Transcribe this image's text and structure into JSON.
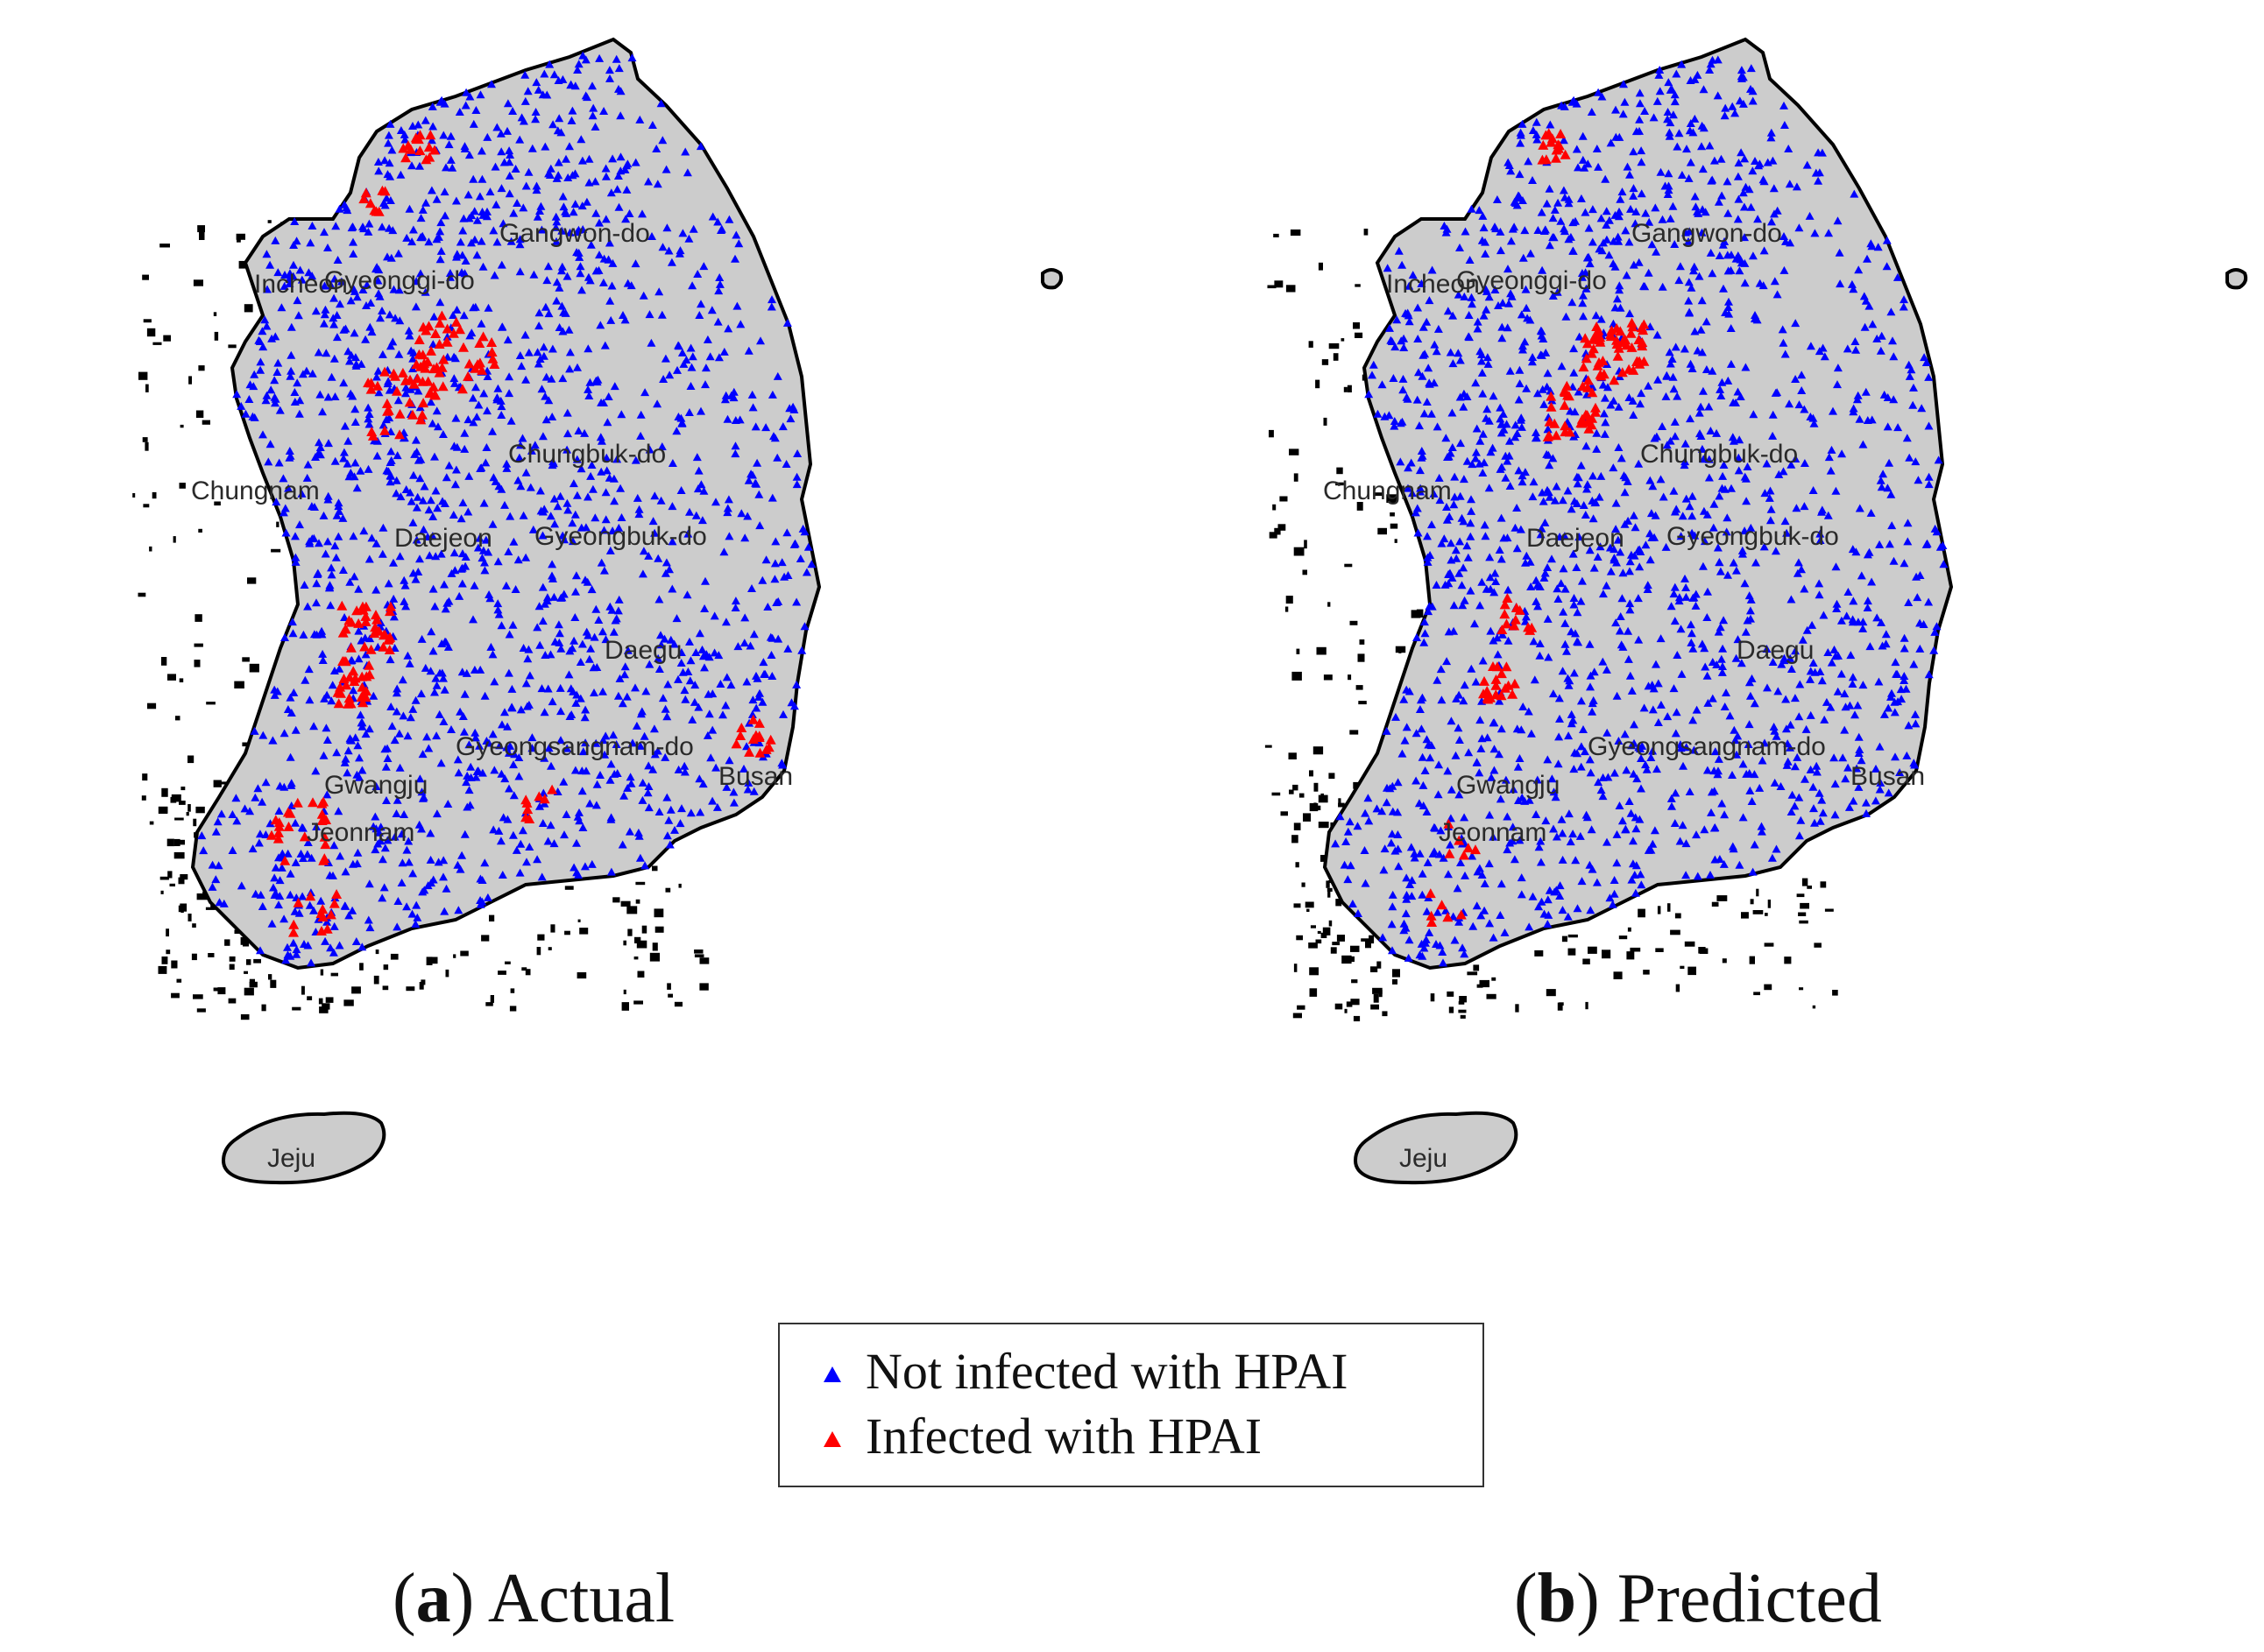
{
  "map": {
    "region_labels": {
      "gangwon": "Gangwon-do",
      "gyeonggi": "Gyeonggi-do",
      "incheon": "Incheon",
      "chungbuk": "Chungbuk-do",
      "chungnam": "Chungnam",
      "gyeongbuk": "Gyeongbuk-do",
      "daejeon": "Daejeon",
      "daegu": "Daegu",
      "gyeongnam": "Gyeongsangnam-do",
      "busan": "Busan",
      "jeonnam": "Jeonnam",
      "gwangju": "Gwangju",
      "jeju": "Jeju"
    },
    "colors": {
      "not_infected": "#0000ff",
      "infected": "#ff0000",
      "land": "#cccccc",
      "outline": "#000000"
    }
  },
  "legend": {
    "not_infected": "Not infected with HPAI",
    "infected": "Infected with HPAI"
  },
  "captions": {
    "a_letter": "a",
    "a_text": "Actual",
    "b_letter": "b",
    "b_text": "Predicted"
  }
}
